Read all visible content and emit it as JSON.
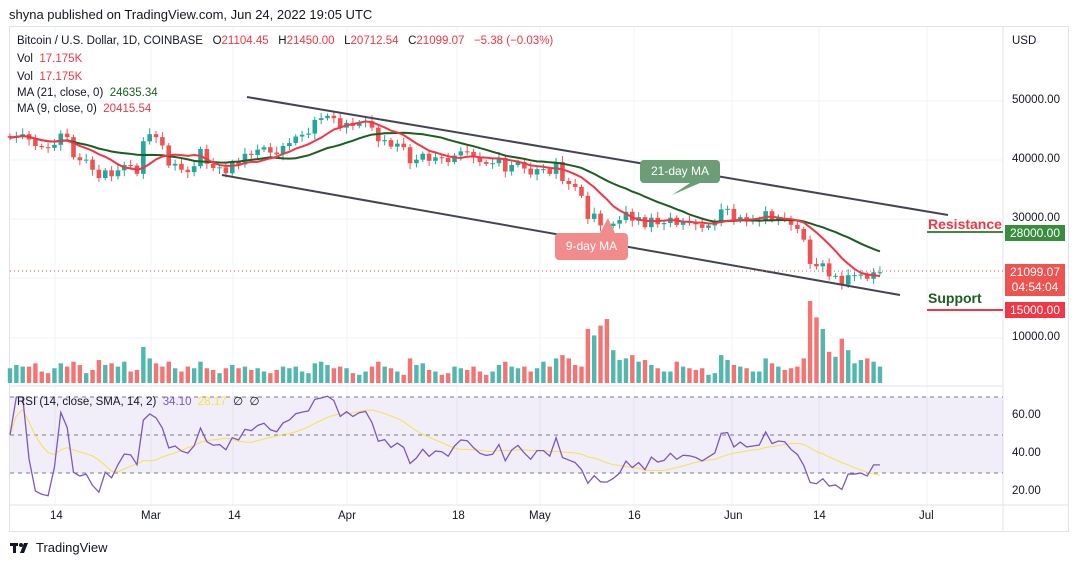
{
  "publisher": "shyna published on TradingView.com, Jun 24, 2022 19:05 UTC",
  "legend": {
    "symbol": "Bitcoin / U.S. Dollar, 1D, COINBASE",
    "o_label": "O",
    "o": "21104.45",
    "h_label": "H",
    "h": "21450.00",
    "l_label": "L",
    "l": "20712.54",
    "c_label": "C",
    "c": "21099.07",
    "change": "−5.38 (−0.03%)",
    "vol1_label": "Vol",
    "vol1": "17.175K",
    "vol2_label": "Vol",
    "vol2": "17.175K",
    "ma21_label": "MA (21, close, 0)",
    "ma21": "24635.34",
    "ma9_label": "MA (9, close, 0)",
    "ma9": "20415.54",
    "rsi_label": "RSI (14, close, SMA, 14, 2)",
    "rsi": "34.10",
    "rsi_sma": "28.17",
    "rsi_x1": "∅",
    "rsi_x2": "∅"
  },
  "price_axis": {
    "currency": "USD",
    "labels": [
      "50000.00",
      "40000.00",
      "30000.00",
      "10000.00"
    ],
    "resistance_badge": "28000.00",
    "last_price": "21099.07",
    "countdown": "04:54:04",
    "support_badge": "15000.00"
  },
  "rsi_axis": [
    "60.00",
    "40.00",
    "20.00"
  ],
  "time_axis": [
    "14",
    "Mar",
    "14",
    "Apr",
    "18",
    "May",
    "16",
    "Jun",
    "14",
    "Jul"
  ],
  "annotations": {
    "ma21": "21-day MA",
    "ma9": "9-day MA",
    "resistance": "Resistance",
    "support": "Support"
  },
  "footer": {
    "brand": "TradingView"
  },
  "colors": {
    "up": "#26a69a",
    "down": "#ef5350",
    "ma21": "#1b5e20",
    "ma9": "#f23645",
    "rsi": "#7e57c2",
    "rsi_sma": "#f5e24a"
  },
  "chart_data": {
    "type": "candlestick",
    "start_date": "2022-02-07",
    "end_date": "2022-06-24",
    "close_thousands": [
      43.8,
      44.1,
      44.4,
      43.5,
      42.4,
      42.2,
      42.1,
      42.6,
      44.5,
      43.9,
      40.5,
      40.0,
      40.1,
      38.4,
      37.0,
      38.3,
      37.3,
      38.3,
      39.2,
      39.1,
      37.7,
      43.2,
      44.4,
      43.9,
      42.5,
      39.1,
      39.4,
      38.4,
      38.0,
      39.0,
      41.9,
      39.4,
      38.7,
      38.8,
      37.8,
      39.7,
      39.3,
      41.1,
      40.9,
      41.8,
      42.2,
      41.3,
      41.0,
      42.4,
      42.9,
      44.0,
      44.3,
      44.5,
      46.8,
      47.1,
      47.5,
      47.1,
      45.5,
      46.3,
      45.8,
      46.4,
      46.6,
      45.5,
      43.2,
      43.4,
      42.3,
      42.8,
      42.2,
      39.5,
      40.1,
      41.1,
      39.9,
      40.5,
      40.4,
      39.7,
      40.8,
      41.5,
      41.4,
      40.5,
      39.7,
      39.4,
      39.5,
      40.4,
      38.1,
      39.2,
      39.7,
      38.6,
      37.6,
      38.5,
      38.5,
      37.7,
      39.7,
      36.5,
      36.0,
      35.5,
      34.0,
      30.1,
      31.0,
      29.0,
      28.9,
      29.3,
      29.9,
      31.3,
      29.8,
      30.4,
      28.7,
      30.3,
      29.2,
      29.4,
      30.3,
      29.1,
      29.6,
      29.5,
      29.2,
      28.6,
      29.0,
      29.4,
      31.7,
      31.8,
      29.8,
      30.4,
      29.7,
      29.8,
      29.9,
      31.4,
      29.9,
      30.2,
      30.1,
      29.1,
      28.4,
      26.6,
      22.5,
      22.1,
      22.6,
      20.4,
      20.5,
      19.0,
      20.6,
      20.6,
      20.7,
      20.0,
      21.1,
      21.1
    ],
    "volume_relative": [
      18,
      22,
      20,
      20,
      24,
      14,
      12,
      18,
      24,
      20,
      26,
      22,
      12,
      16,
      28,
      22,
      24,
      20,
      26,
      14,
      16,
      44,
      30,
      24,
      20,
      26,
      18,
      14,
      20,
      18,
      26,
      18,
      16,
      12,
      18,
      22,
      18,
      20,
      16,
      18,
      14,
      12,
      16,
      20,
      18,
      20,
      14,
      12,
      24,
      26,
      22,
      18,
      20,
      18,
      12,
      10,
      14,
      20,
      26,
      20,
      18,
      14,
      10,
      30,
      22,
      24,
      16,
      14,
      10,
      12,
      20,
      18,
      16,
      20,
      14,
      10,
      14,
      22,
      26,
      20,
      18,
      20,
      14,
      18,
      26,
      20,
      30,
      34,
      30,
      22,
      20,
      66,
      58,
      70,
      78,
      40,
      28,
      30,
      34,
      26,
      28,
      22,
      18,
      14,
      14,
      26,
      20,
      18,
      16,
      18,
      10,
      12,
      34,
      28,
      22,
      20,
      18,
      14,
      14,
      30,
      24,
      20,
      16,
      18,
      20,
      30,
      100,
      80,
      66,
      38,
      32,
      54,
      40,
      24,
      28,
      30,
      26,
      20
    ],
    "price_ticks": [
      50000,
      40000,
      30000,
      10000
    ],
    "rsi_ticks": [
      60,
      40,
      20
    ]
  }
}
